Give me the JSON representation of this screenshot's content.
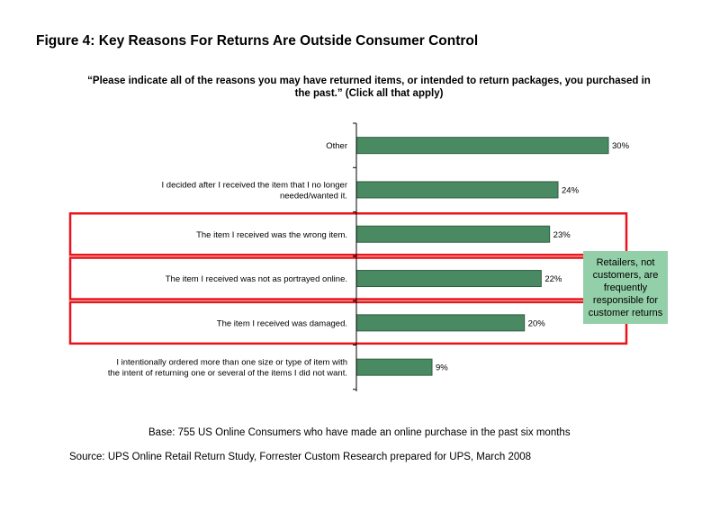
{
  "figure_title": "Figure 4: Key Reasons For Returns Are Outside Consumer Control",
  "question": "“Please indicate all of the reasons you may have returned items, or intended to return packages, you purchased in the past.” (Click all that apply)",
  "callout_text": "Retailers, not customers, are frequently responsible for customer returns",
  "base_note": "Base: 755 US Online Consumers who have made an online purchase in the past six months",
  "source_note": "Source: UPS Online Retail Return Study, Forrester Custom Research prepared for UPS, March 2008",
  "colors": {
    "bar": "#4a8a62",
    "bar_outline": "#2f5e40",
    "highlight": "#e8141c",
    "callout_bg": "#93cfa8",
    "axis": "#000000"
  },
  "chart_data": {
    "type": "bar",
    "orientation": "horizontal",
    "categories": [
      [
        "Other"
      ],
      [
        "I decided after I received the item that I no longer",
        "needed/wanted it."
      ],
      [
        "The item I received was the wrong item."
      ],
      [
        "The item I received was not as portrayed online."
      ],
      [
        "The item I received was damaged."
      ],
      [
        "I intentionally ordered more than one size or type of item with",
        "the intent of returning one or several of the items I did not want."
      ]
    ],
    "values": [
      30,
      24,
      23,
      22,
      20,
      9
    ],
    "value_labels": [
      "30%",
      "24%",
      "23%",
      "22%",
      "20%",
      "9%"
    ],
    "highlighted": [
      false,
      false,
      true,
      true,
      true,
      false
    ],
    "xlim": [
      0,
      30
    ],
    "unit": "%",
    "grid": false,
    "legend": "none"
  }
}
